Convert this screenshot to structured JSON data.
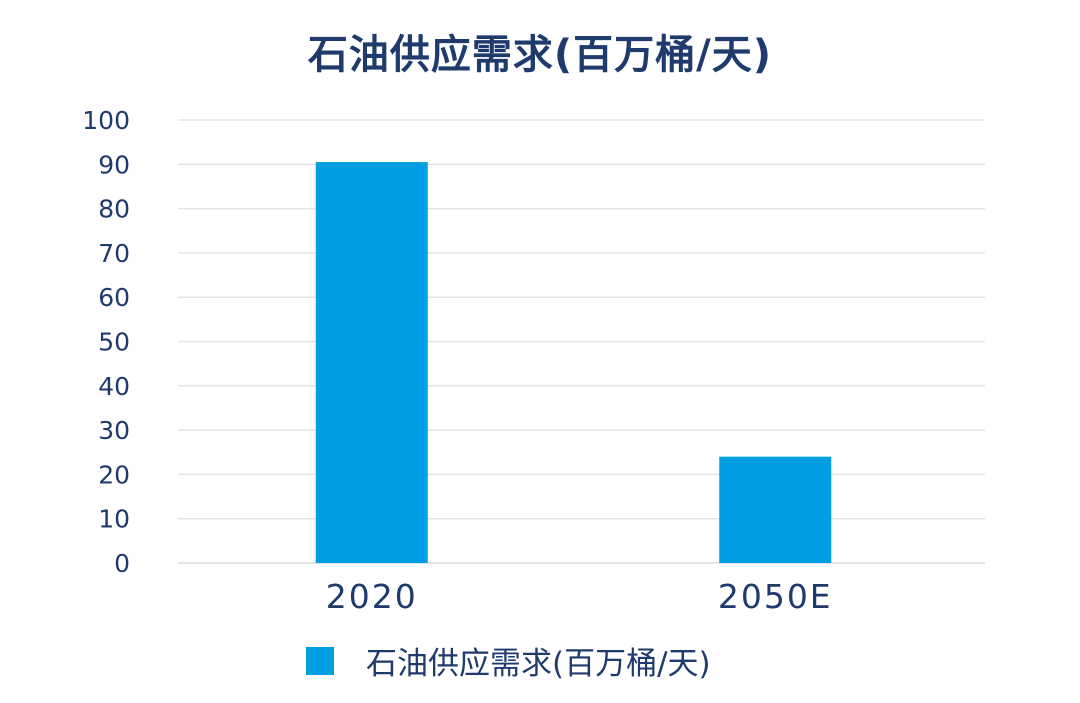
{
  "chart_data": {
    "type": "bar",
    "title": "石油供应需求(百万桶/天)",
    "categories": [
      "2020",
      "2050E"
    ],
    "series": [
      {
        "name": "石油供应需求(百万桶/天)",
        "values": [
          90.5,
          24
        ],
        "color": "#009ee3"
      }
    ],
    "ylim": [
      0,
      100
    ],
    "yticks": [
      0,
      10,
      20,
      30,
      40,
      50,
      60,
      70,
      80,
      90,
      100
    ],
    "grid": true,
    "legend_position": "bottom",
    "colors": {
      "bar": "#009ee3",
      "text": "#1f3a6d",
      "grid": "#e3e3e3"
    }
  }
}
